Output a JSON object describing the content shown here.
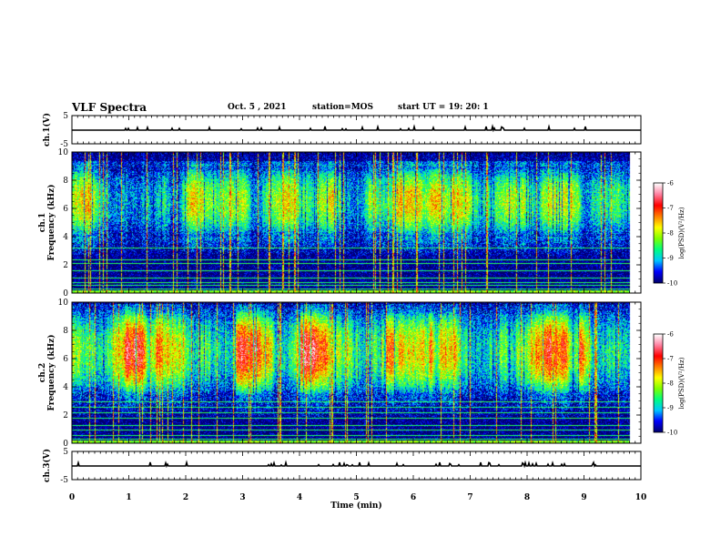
{
  "header": {
    "title": "VLF Spectra",
    "date": "Oct. 5 , 2021",
    "station": "station=MOS",
    "start": "start UT =  19: 20: 1"
  },
  "colors": {
    "scale": [
      "#000070",
      "#0000ff",
      "#00c8ff",
      "#00ff80",
      "#80ff00",
      "#ffff00",
      "#ff8000",
      "#ff0000",
      "#ff80a0",
      "#ffffff"
    ]
  },
  "chart_data": [
    {
      "type": "line",
      "name": "ch1-waveform",
      "ylabel": "ch.1(V)",
      "ylim": [
        -5,
        5
      ],
      "yticks": [
        "5",
        "-5"
      ],
      "xlim": [
        0,
        10
      ],
      "trace_level": 0
    },
    {
      "type": "heatmap",
      "name": "ch1-spectrogram",
      "ylabel": "ch.1 Frequency (kHz)",
      "ylim": [
        0,
        10
      ],
      "yticks": [
        "0",
        "2",
        "4",
        "6",
        "8",
        "10"
      ],
      "xlim": [
        0,
        10
      ],
      "data_end_min": 9.8,
      "colorbar": {
        "label": "log(PSD)(V²/Hz)",
        "range": [
          -10,
          -6
        ],
        "ticks": [
          "-6",
          "-7",
          "-8",
          "-9",
          "-10"
        ]
      },
      "band_kHz": [
        4.0,
        9.0
      ],
      "peak_level": 0.55,
      "hum_lines_kHz": [
        0.3,
        0.55,
        0.8,
        1.1,
        1.6,
        2.1,
        2.4,
        3.2
      ]
    },
    {
      "type": "heatmap",
      "name": "ch2-spectrogram",
      "ylabel": "ch.2 Frequency (kHz)",
      "ylim": [
        0,
        10
      ],
      "yticks": [
        "0",
        "2",
        "4",
        "6",
        "8",
        "10"
      ],
      "xlim": [
        0,
        10
      ],
      "data_end_min": 9.8,
      "colorbar": {
        "label": "log(PSD)(V²/Hz)",
        "range": [
          -10,
          -6
        ],
        "ticks": [
          "-6",
          "-7",
          "-8",
          "-9",
          "-10"
        ]
      },
      "band_kHz": [
        3.5,
        9.5
      ],
      "peak_level": 0.85,
      "hum_lines_kHz": [
        0.3,
        0.6,
        1.0,
        1.3,
        1.8,
        2.2,
        2.6,
        3.0
      ]
    },
    {
      "type": "line",
      "name": "ch3-waveform",
      "ylabel": "ch.3(V)",
      "ylim": [
        -5,
        5
      ],
      "yticks": [
        "5",
        "-5"
      ],
      "xlim": [
        0,
        10
      ],
      "trace_level": 0
    }
  ],
  "xaxis": {
    "label": "Time  (min)",
    "ticks": [
      "0",
      "1",
      "2",
      "3",
      "4",
      "5",
      "6",
      "7",
      "8",
      "9",
      "10"
    ]
  }
}
